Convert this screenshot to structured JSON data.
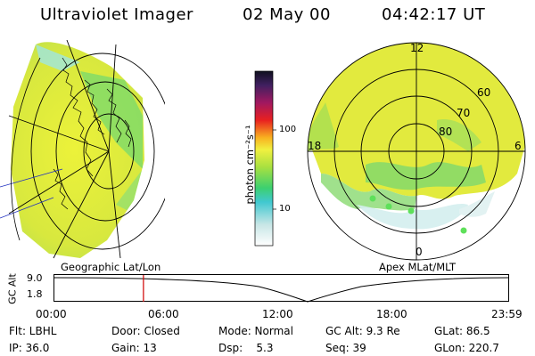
{
  "header": {
    "instrument": "Ultraviolet Imager",
    "date": "02 May 00",
    "time": "04:42:17 UT"
  },
  "colorbar": {
    "unit_label": "photon cm⁻²s⁻¹",
    "tick_high": "100",
    "tick_low": "10"
  },
  "left_panel": {
    "caption": "Geographic Lat/Lon"
  },
  "right_panel": {
    "caption": "Apex MLat/MLT",
    "mlt_labels": {
      "top": "12",
      "left": "18",
      "right": "6",
      "bottom": "0"
    },
    "lat_labels": [
      "60",
      "70",
      "80"
    ]
  },
  "altitude_plot": {
    "ylabel": "GC Alt",
    "y_ticks": [
      "9.0",
      "1.8"
    ],
    "x_ticks": [
      "00:00",
      "06:00",
      "12:00",
      "18:00",
      "23:59"
    ],
    "current_time_hours": 4.7
  },
  "footer": {
    "row1": {
      "filter": "Flt: LBHL",
      "door": "Door: Closed",
      "mode": "Mode: Normal",
      "gc_alt": "GC Alt: 9.3 Re",
      "glat": "GLat:  86.5"
    },
    "row2": {
      "ip": "IP: 36.0",
      "gain": "Gain: 13",
      "dsp": "Dsp:    5.3",
      "seq": "Seq: 39",
      "glon": "GLon: 220.7"
    }
  },
  "colors": {
    "aurora_base": "#e3ec3c",
    "aurora_green": "#5fd86a",
    "aurora_cyan": "#9fe6e0",
    "time_marker": "#d00000"
  }
}
